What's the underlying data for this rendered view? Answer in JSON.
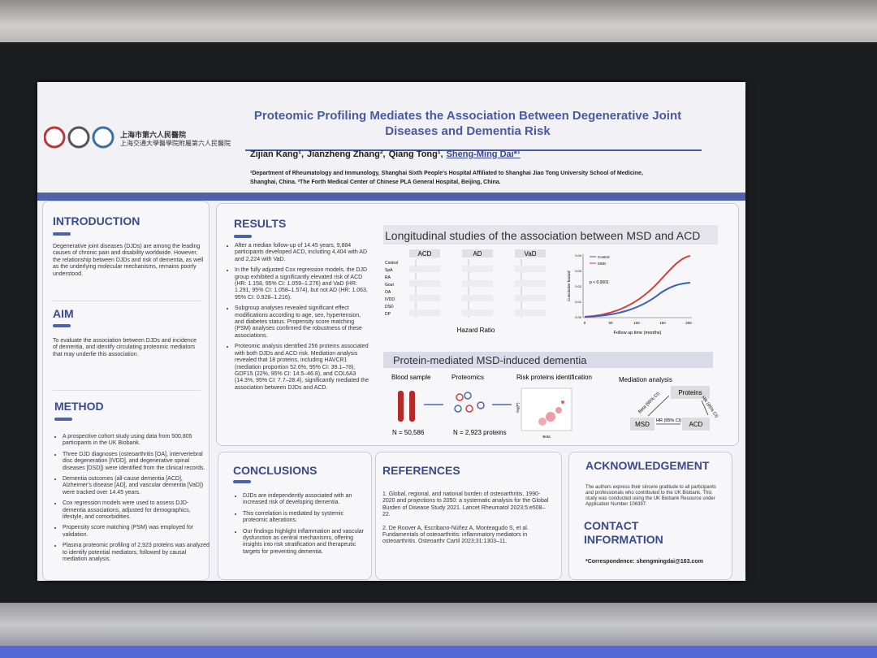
{
  "header": {
    "logo_line1": "上海市第六人民醫院",
    "logo_line2": "上海交通大學醫學院附屬第六人民醫院",
    "title_line1": "Proteomic Profiling Mediates the Association Between Degenerative Joint",
    "title_line2": "Diseases and Dementia Risk",
    "authors": [
      "Zijian Kang¹,",
      "Jianzheng Zhang²,",
      "Qiang Tong¹,",
      "Sheng-Ming Dai*¹"
    ],
    "affiliation1": "¹Department of Rheumatology and Immunology, Shanghai Sixth People's Hospital Affiliated to Shanghai Jiao Tong University School of Medicine,",
    "affiliation2": "Shanghai, China. ²The Forth Medical Center of Chinese PLA General Hospital, Beijing, China."
  },
  "introduction": {
    "heading": "INTRODUCTION",
    "text": "Degenerative joint diseases (DJDs) are among the leading causes of chronic pain and disability worldwide. However, the relationship between DJDs and risk of dementia, as well as the underlying molecular mechanisms, remains poorly understood."
  },
  "aim": {
    "heading": "AIM",
    "text": "To evaluate the association between DJDs and incidence of dementia, and identify circulating proteomic mediators that may underlie this association."
  },
  "method": {
    "heading": "METHOD",
    "bullets": [
      "A prospective cohort study using data from 500,805 participants in the UK Biobank.",
      "Three DJD diagnoses (osteoarthritis [OA], intervertebral disc degeneration [IVDD], and degenerative spinal diseases [DSD]) were identified from the clinical records.",
      "Dementia outcomes (all-cause dementia [ACD], Alzheimer's disease [AD], and vascular dementia [VaD]) were tracked over 14.45 years.",
      "Cox regression models were used to assess DJD-dementia associations, adjusted for demographics, lifestyle, and comorbidities.",
      "Propensity score matching (PSM) was employed for validation.",
      "Plasma proteomic profiling of 2,923 proteins was analyzed to identify potential mediators, followed by causal mediation analysis."
    ]
  },
  "results": {
    "heading": "RESULTS",
    "bullets": [
      "After a median follow-up of 14.45 years, 9,884 participants developed ACD, including 4,404 with AD and 2,224 with VaD.",
      "In the fully adjusted Cox regression models, the DJD group exhibited a significantly elevated risk of ACD (HR: 1.158, 95% CI: 1.059–1.276) and VaD (HR: 1.291, 95% CI: 1.058–1.574), but not AD (HR: 1.063, 95% CI: 0.928–1.216).",
      "Subgroup analyses revealed significant effect modifications according to age, sex, hypertension, and diabetes status. Propensity score matching (PSM) analyses confirmed the robustness of these associations.",
      "Proteomic analysis identified 256 proteins associated with both DJDs and ACD risk. Mediation analysis revealed that 18 proteins, including HAVCR1 (mediation proportion 52.6%, 95% CI: 39.1–78), GDF15 (22%, 95% CI: 14.5–46.8), and COL6A3 (14.3%, 95% CI: 7.7–28.4), significantly mediated the association between DJDs and ACD."
    ]
  },
  "figure1": {
    "title": "Longitudinal studies of the association between MSD and ACD",
    "panels": [
      "ACD",
      "AD",
      "VaD"
    ],
    "rows": [
      "Control",
      "SpA",
      "RA",
      "Gout",
      "OA",
      "IVDD",
      "DSD",
      "DP"
    ],
    "x_label": "Hazard Ratio",
    "legend": [
      "Control",
      "MSD"
    ],
    "p_text": "p < 0.0001",
    "y_label": "Cumulative hazard",
    "x_axis_label": "Follow up time (months)",
    "x_ticks": [
      "0",
      "50",
      "100",
      "150",
      "200"
    ],
    "y_ticks": [
      "0.00",
      "0.01",
      "0.02",
      "0.03",
      "0.04"
    ]
  },
  "figure2": {
    "title": "Protein-mediated MSD-induced dementia",
    "steps": [
      "Blood sample",
      "Proteomics",
      "Risk proteins identification",
      "Mediation analysis"
    ],
    "n_blood": "N = 50,586",
    "n_proteins": "N = 2,923 proteins",
    "volcano_x": "Beta",
    "volcano_y": "-log(P)",
    "node_proteins": "Proteins",
    "node_msd": "MSD",
    "node_acd": "ACD",
    "edge_a": "Beta (95% CI)",
    "edge_b": "HR (95% CI)",
    "edge_c": "HR (95% CI)"
  },
  "conclusions": {
    "heading": "CONCLUSIONS",
    "bullets": [
      "DJDs are independently associated with an increased risk of developing dementia.",
      "This correlation is mediated by systemic proteomic alterations.",
      "Our findings highlight inflammation and vascular dysfunction as central mechanisms, offering insights into risk stratification and therapeutic targets for preventing dementia."
    ]
  },
  "references": {
    "heading": "REFERENCES",
    "items": [
      "1.  Global, regional, and national burden of osteoarthritis, 1990-2020 and projections to 2050: a systematic analysis for the Global Burden of Disease Study 2021. Lancet Rheumatol 2023;5:e508–22.",
      "2.  De Roover A, Escribano-Núñez A, Monteagudo S, et al. Fundamentals of osteoarthritis: inflammatory mediators in osteoarthritis. Osteoarthr Cartil 2023;31:1303–11."
    ]
  },
  "acknowledgement": {
    "heading": "ACKNOWLEDGEMENT",
    "text": "The authors express their sincere gratitude to all participants and professionals who contributed to the UK Biobank. This study was conducted using the UK Biobank Resource under Application Number 106397."
  },
  "contact": {
    "heading_line1": "CONTACT",
    "heading_line2": "INFORMATION",
    "text": "*Correspondence: shengmingdai@163.com"
  }
}
